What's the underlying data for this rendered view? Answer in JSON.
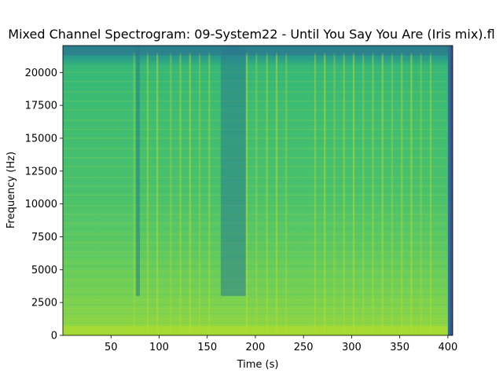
{
  "chart_data": {
    "type": "heatmap",
    "title": "Mixed Channel Spectrogram: 09-System22 - Until You Say You Are (Iris mix).fl",
    "xlabel": "Time (s)",
    "ylabel": "Frequency (Hz)",
    "xlim": [
      0,
      405
    ],
    "ylim": [
      0,
      22050
    ],
    "x_ticks": [
      {
        "value": 50,
        "label": "50"
      },
      {
        "value": 100,
        "label": "100"
      },
      {
        "value": 150,
        "label": "150"
      },
      {
        "value": 200,
        "label": "200"
      },
      {
        "value": 250,
        "label": "250"
      },
      {
        "value": 300,
        "label": "300"
      },
      {
        "value": 350,
        "label": "350"
      },
      {
        "value": 400,
        "label": "400"
      }
    ],
    "y_ticks": [
      {
        "value": 0,
        "label": "0"
      },
      {
        "value": 2500,
        "label": "2500"
      },
      {
        "value": 5000,
        "label": "5000"
      },
      {
        "value": 7500,
        "label": "7500"
      },
      {
        "value": 10000,
        "label": "10000"
      },
      {
        "value": 12500,
        "label": "12500"
      },
      {
        "value": 15000,
        "label": "15000"
      },
      {
        "value": 17500,
        "label": "17500"
      },
      {
        "value": 20000,
        "label": "20000"
      }
    ],
    "colormap": "viridis",
    "grid": false,
    "quiet_regions_s": [
      [
        164,
        190
      ],
      [
        76,
        80
      ]
    ],
    "bright_transients_s": [
      74,
      88,
      98,
      112,
      122,
      132,
      142,
      152,
      191,
      201,
      212,
      222,
      232,
      262,
      272,
      282,
      292,
      302,
      312,
      322,
      332,
      342,
      352,
      362,
      372,
      382
    ],
    "signal_end_s": 400
  }
}
